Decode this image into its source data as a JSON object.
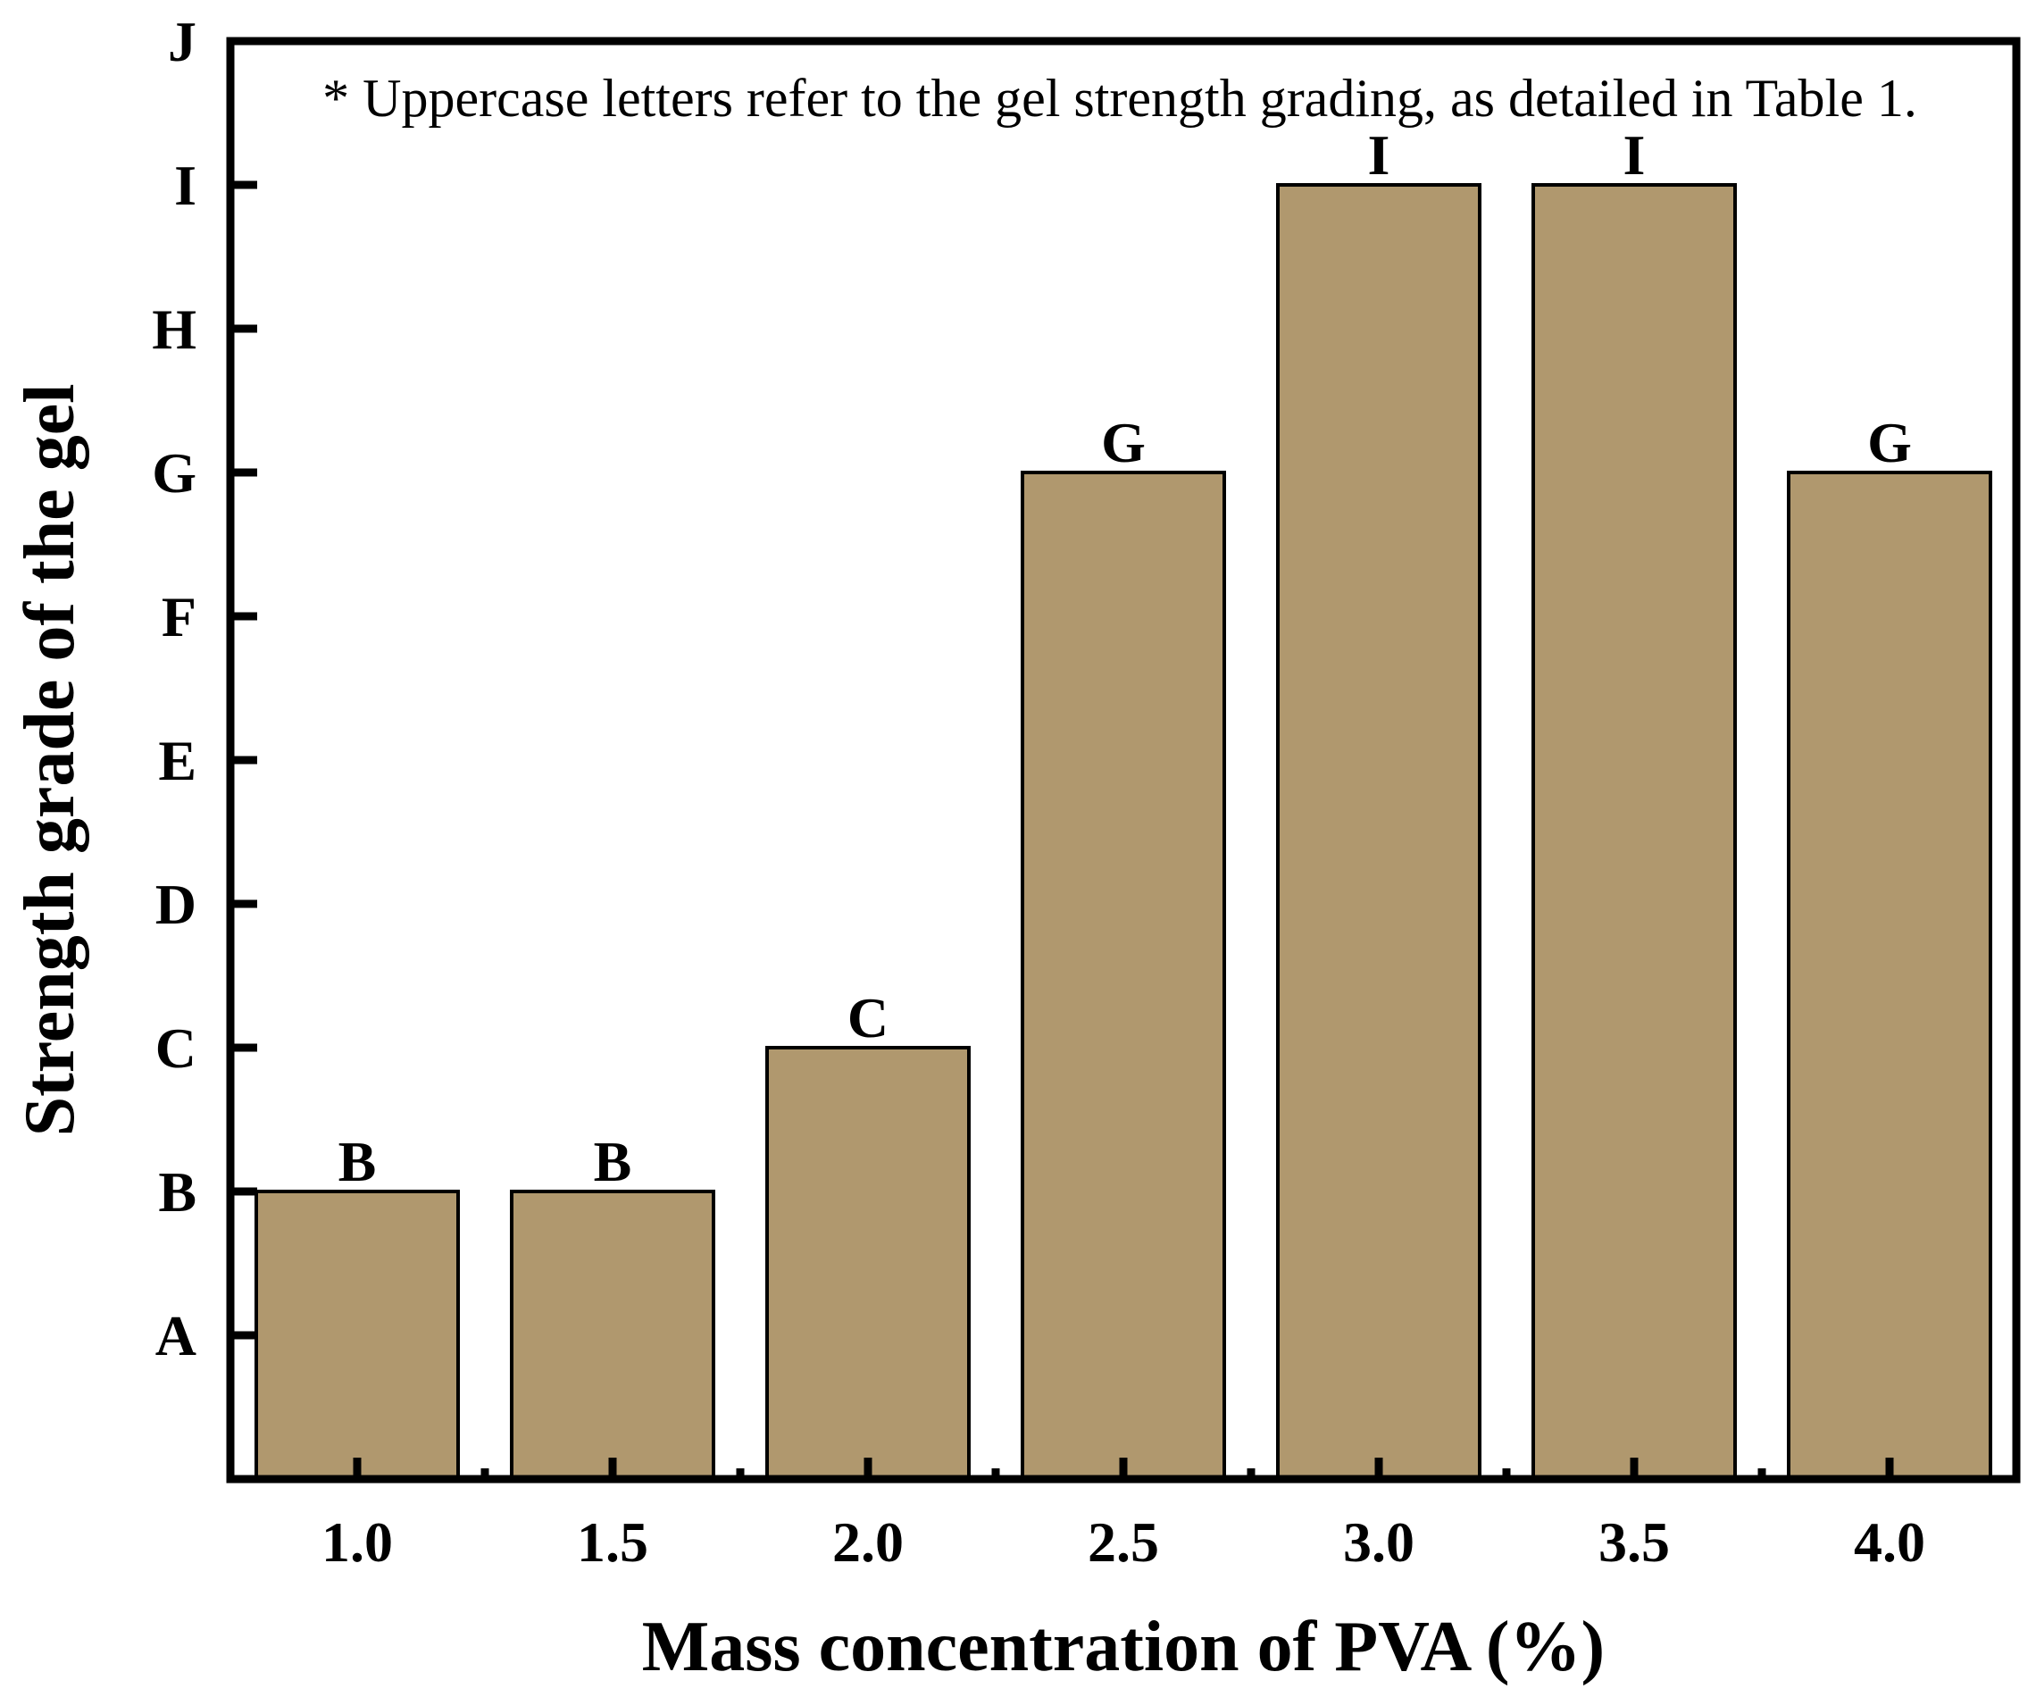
{
  "chart_data": {
    "type": "bar",
    "xlabel": "Mass concentration of PVA (%)",
    "ylabel": "Strength grade of the gel",
    "note": "* Uppercase letters refer to the gel strength grading, as detailed in Table 1.",
    "categories": [
      "1.0",
      "1.5",
      "2.0",
      "2.5",
      "3.0",
      "3.5",
      "4.0"
    ],
    "y_tick_labels": [
      "A",
      "B",
      "C",
      "D",
      "E",
      "F",
      "G",
      "H",
      "I",
      "J"
    ],
    "ylim": [
      0,
      10
    ],
    "values": [
      2,
      2,
      3,
      7,
      9,
      9,
      7
    ],
    "value_labels": [
      "B",
      "B",
      "C",
      "G",
      "I",
      "I",
      "G"
    ],
    "bar_color": "#b0986e",
    "grid": false,
    "legend": "none"
  }
}
